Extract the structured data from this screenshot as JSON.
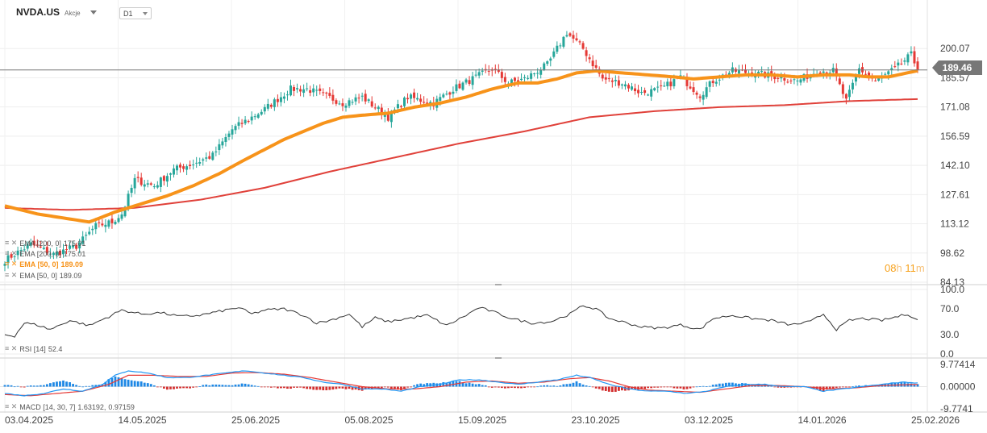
{
  "header": {
    "symbol": "NVDA.US",
    "type": "Akcje",
    "timeframe": "D1"
  },
  "last_price_label": "189.46",
  "countdown": {
    "hours": "08",
    "hours_unit": "h",
    "minutes": "11",
    "minutes_unit": "m"
  },
  "legend_main": [
    {
      "name": "EMA [200,  0]",
      "value": "175.01"
    },
    {
      "name": "EMA [200,  0]",
      "value": "175.01"
    },
    {
      "name": "EMA [50,  0]",
      "value": "189.09",
      "highlight": true
    },
    {
      "name": "EMA [50,  0]",
      "value": "189.09"
    }
  ],
  "legend_rsi": {
    "name": "RSI [14]",
    "value": "52.4"
  },
  "legend_macd": {
    "name": "MACD [14,  30,  7]",
    "value1": "1.63192,",
    "value2": "0.97159"
  },
  "colors": {
    "up": "#26a69a",
    "down": "#e53935",
    "ema50": "#f7931a",
    "ema200": "#e0413a",
    "rsi": "#333333",
    "macd": "#2196f3",
    "signal": "#e53935",
    "hist_up": "#1e88e5",
    "hist_down": "#d32f2f"
  },
  "chart_data": {
    "type": "candlestick",
    "price_axis": {
      "ticks": [
        "200.07",
        "185.57",
        "171.08",
        "156.59",
        "142.10",
        "127.61",
        "113.12",
        "98.62",
        "84.13"
      ],
      "range": [
        84.13,
        214.56
      ]
    },
    "rsi_axis": {
      "ticks": [
        "100.0",
        "70.0",
        "30.0",
        "0.0"
      ],
      "range": [
        0,
        100
      ]
    },
    "macd_axis": {
      "ticks": [
        "9.77414",
        "0.00000",
        "-9.7741"
      ],
      "range": [
        -9.77414,
        9.77414
      ]
    },
    "x_labels": [
      "03.04.2025",
      "14.05.2025",
      "25.06.2025",
      "05.08.2025",
      "15.09.2025",
      "23.10.2025",
      "03.12.2025",
      "14.01.2026",
      "25.02.2026"
    ],
    "last_price": 189.46,
    "close_keyframes": [
      [
        0,
        95
      ],
      [
        8,
        103
      ],
      [
        15,
        98
      ],
      [
        22,
        102
      ],
      [
        28,
        112
      ],
      [
        33,
        114
      ],
      [
        36,
        118
      ],
      [
        40,
        135
      ],
      [
        46,
        132
      ],
      [
        52,
        140
      ],
      [
        58,
        143
      ],
      [
        64,
        147
      ],
      [
        70,
        160
      ],
      [
        76,
        166
      ],
      [
        80,
        170
      ],
      [
        84,
        175
      ],
      [
        88,
        180
      ],
      [
        93,
        180
      ],
      [
        98,
        177
      ],
      [
        104,
        173
      ],
      [
        110,
        176
      ],
      [
        118,
        166
      ],
      [
        124,
        176
      ],
      [
        132,
        173
      ],
      [
        138,
        180
      ],
      [
        144,
        185
      ],
      [
        150,
        190
      ],
      [
        155,
        183
      ],
      [
        160,
        185
      ],
      [
        167,
        192
      ],
      [
        173,
        208
      ],
      [
        178,
        200
      ],
      [
        184,
        185
      ],
      [
        190,
        183
      ],
      [
        196,
        178
      ],
      [
        202,
        180
      ],
      [
        208,
        186
      ],
      [
        214,
        177
      ],
      [
        218,
        184
      ],
      [
        224,
        189
      ],
      [
        230,
        188
      ],
      [
        238,
        186
      ],
      [
        244,
        184
      ],
      [
        250,
        189
      ],
      [
        255,
        189
      ],
      [
        259,
        174
      ],
      [
        263,
        190
      ],
      [
        268,
        184
      ],
      [
        274,
        190
      ],
      [
        279,
        197
      ],
      [
        281,
        189.46
      ]
    ],
    "ema50_keyframes": [
      [
        0,
        122
      ],
      [
        10,
        118
      ],
      [
        18,
        116
      ],
      [
        26,
        114
      ],
      [
        34,
        119
      ],
      [
        42,
        123
      ],
      [
        50,
        127
      ],
      [
        58,
        132
      ],
      [
        66,
        138
      ],
      [
        74,
        145
      ],
      [
        80,
        150
      ],
      [
        86,
        155
      ],
      [
        92,
        159
      ],
      [
        98,
        163
      ],
      [
        104,
        166
      ],
      [
        110,
        167
      ],
      [
        118,
        168
      ],
      [
        126,
        171
      ],
      [
        134,
        173
      ],
      [
        142,
        176
      ],
      [
        150,
        180
      ],
      [
        158,
        183
      ],
      [
        164,
        183
      ],
      [
        170,
        185
      ],
      [
        176,
        188
      ],
      [
        182,
        189
      ],
      [
        190,
        188
      ],
      [
        198,
        187
      ],
      [
        206,
        186
      ],
      [
        212,
        185
      ],
      [
        220,
        186
      ],
      [
        228,
        187
      ],
      [
        236,
        187
      ],
      [
        244,
        186
      ],
      [
        252,
        187
      ],
      [
        260,
        187
      ],
      [
        266,
        186
      ],
      [
        272,
        186
      ],
      [
        281,
        189.09
      ]
    ],
    "ema200_keyframes": [
      [
        0,
        121
      ],
      [
        20,
        120
      ],
      [
        40,
        121
      ],
      [
        60,
        125
      ],
      [
        80,
        131
      ],
      [
        100,
        139
      ],
      [
        120,
        146
      ],
      [
        140,
        153
      ],
      [
        160,
        159
      ],
      [
        180,
        166
      ],
      [
        200,
        169
      ],
      [
        220,
        171
      ],
      [
        240,
        172
      ],
      [
        260,
        174
      ],
      [
        281,
        175.01
      ]
    ],
    "rsi_keyframes": [
      [
        0,
        30
      ],
      [
        3,
        28
      ],
      [
        6,
        48
      ],
      [
        10,
        45
      ],
      [
        14,
        38
      ],
      [
        20,
        52
      ],
      [
        26,
        44
      ],
      [
        32,
        58
      ],
      [
        36,
        68
      ],
      [
        42,
        62
      ],
      [
        48,
        64
      ],
      [
        54,
        58
      ],
      [
        60,
        60
      ],
      [
        66,
        66
      ],
      [
        72,
        72
      ],
      [
        76,
        62
      ],
      [
        80,
        68
      ],
      [
        86,
        70
      ],
      [
        92,
        60
      ],
      [
        96,
        48
      ],
      [
        100,
        52
      ],
      [
        106,
        62
      ],
      [
        110,
        42
      ],
      [
        114,
        56
      ],
      [
        118,
        50
      ],
      [
        124,
        55
      ],
      [
        130,
        60
      ],
      [
        136,
        44
      ],
      [
        142,
        60
      ],
      [
        146,
        72
      ],
      [
        150,
        66
      ],
      [
        156,
        55
      ],
      [
        162,
        48
      ],
      [
        168,
        50
      ],
      [
        174,
        62
      ],
      [
        178,
        75
      ],
      [
        182,
        70
      ],
      [
        186,
        55
      ],
      [
        190,
        50
      ],
      [
        196,
        42
      ],
      [
        202,
        40
      ],
      [
        208,
        45
      ],
      [
        214,
        38
      ],
      [
        218,
        55
      ],
      [
        224,
        60
      ],
      [
        230,
        55
      ],
      [
        236,
        52
      ],
      [
        242,
        45
      ],
      [
        248,
        50
      ],
      [
        252,
        62
      ],
      [
        256,
        38
      ],
      [
        260,
        52
      ],
      [
        264,
        55
      ],
      [
        270,
        52
      ],
      [
        278,
        62
      ],
      [
        281,
        52.4
      ]
    ],
    "macd_keyframes": [
      [
        0,
        -3
      ],
      [
        6,
        -4
      ],
      [
        12,
        -3
      ],
      [
        18,
        -1
      ],
      [
        24,
        -2
      ],
      [
        30,
        1
      ],
      [
        34,
        5
      ],
      [
        38,
        7
      ],
      [
        44,
        6
      ],
      [
        50,
        4
      ],
      [
        56,
        4
      ],
      [
        62,
        5
      ],
      [
        68,
        6
      ],
      [
        74,
        7
      ],
      [
        80,
        6
      ],
      [
        86,
        5
      ],
      [
        92,
        4
      ],
      [
        98,
        2
      ],
      [
        104,
        1
      ],
      [
        110,
        -1
      ],
      [
        116,
        -1
      ],
      [
        122,
        -2
      ],
      [
        128,
        0
      ],
      [
        134,
        1
      ],
      [
        140,
        3
      ],
      [
        146,
        3
      ],
      [
        152,
        2
      ],
      [
        158,
        1
      ],
      [
        164,
        2
      ],
      [
        170,
        3
      ],
      [
        176,
        5
      ],
      [
        180,
        4
      ],
      [
        186,
        1
      ],
      [
        192,
        -1
      ],
      [
        198,
        -2
      ],
      [
        204,
        -2
      ],
      [
        210,
        -3
      ],
      [
        216,
        -2
      ],
      [
        222,
        0
      ],
      [
        228,
        1
      ],
      [
        234,
        1
      ],
      [
        240,
        0
      ],
      [
        246,
        0
      ],
      [
        252,
        -2
      ],
      [
        258,
        -1
      ],
      [
        264,
        0
      ],
      [
        270,
        1
      ],
      [
        276,
        2
      ],
      [
        281,
        1.63
      ]
    ],
    "signal_keyframes": [
      [
        0,
        -3.5
      ],
      [
        8,
        -4
      ],
      [
        16,
        -3
      ],
      [
        24,
        -2
      ],
      [
        32,
        1
      ],
      [
        38,
        5
      ],
      [
        46,
        5
      ],
      [
        54,
        4.5
      ],
      [
        62,
        4.5
      ],
      [
        70,
        6
      ],
      [
        78,
        6.2
      ],
      [
        86,
        5.5
      ],
      [
        94,
        4
      ],
      [
        102,
        2
      ],
      [
        110,
        0
      ],
      [
        118,
        -1
      ],
      [
        126,
        -1
      ],
      [
        134,
        0
      ],
      [
        142,
        2
      ],
      [
        150,
        2.5
      ],
      [
        158,
        1.5
      ],
      [
        166,
        2
      ],
      [
        174,
        3.5
      ],
      [
        180,
        4
      ],
      [
        186,
        2.5
      ],
      [
        192,
        0
      ],
      [
        198,
        -1.5
      ],
      [
        206,
        -2
      ],
      [
        214,
        -2.5
      ],
      [
        222,
        -1
      ],
      [
        230,
        0.5
      ],
      [
        238,
        0.5
      ],
      [
        246,
        0
      ],
      [
        254,
        -1
      ],
      [
        262,
        -0.5
      ],
      [
        270,
        0.5
      ],
      [
        281,
        0.97
      ]
    ]
  }
}
